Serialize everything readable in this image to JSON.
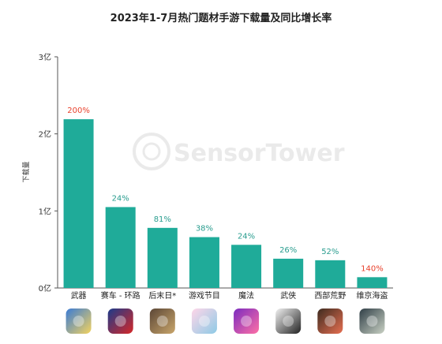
{
  "chart_data": {
    "type": "bar",
    "title": "2023年1-7月热门题材手游下载量及同比增长率",
    "ylabel": "下载量",
    "ylim": [
      0,
      3
    ],
    "yticks": [
      {
        "value": 0,
        "label": "0亿"
      },
      {
        "value": 1,
        "label": "1亿"
      },
      {
        "value": 2,
        "label": "2亿"
      },
      {
        "value": 3,
        "label": "3亿"
      }
    ],
    "grid": false,
    "categories": [
      "武器",
      "赛车 - 环路",
      "后末日*",
      "游戏节目",
      "魔法",
      "武侠",
      "西部荒野",
      "维京海盗"
    ],
    "values": [
      2.19,
      1.05,
      0.78,
      0.66,
      0.56,
      0.38,
      0.36,
      0.14
    ],
    "growth_labels": [
      "200%",
      "24%",
      "81%",
      "38%",
      "24%",
      "26%",
      "52%",
      "140%"
    ],
    "growth_colors": [
      "#e8412c",
      "#2a9d8f",
      "#2a9d8f",
      "#2a9d8f",
      "#2a9d8f",
      "#2a9d8f",
      "#2a9d8f",
      "#e8412c"
    ],
    "bar_color": "#1fab99",
    "watermark": "SensorTower",
    "icons": [
      {
        "name": "weapon-game-icon",
        "c1": "#3a7bd5",
        "c2": "#f4d35e"
      },
      {
        "name": "racing-game-icon",
        "c1": "#1b3b8b",
        "c2": "#d62828"
      },
      {
        "name": "post-apocalyptic-game-icon",
        "c1": "#5b4636",
        "c2": "#c9a66b"
      },
      {
        "name": "game-show-icon",
        "c1": "#ffd6e8",
        "c2": "#8ecae6"
      },
      {
        "name": "magic-game-icon",
        "c1": "#7b2cbf",
        "c2": "#ff70a6"
      },
      {
        "name": "wuxia-game-icon",
        "c1": "#f1f1f1",
        "c2": "#222222"
      },
      {
        "name": "western-game-icon",
        "c1": "#3d2b1f",
        "c2": "#e76f51"
      },
      {
        "name": "viking-game-icon",
        "c1": "#2f3e46",
        "c2": "#cad2c5"
      }
    ]
  }
}
